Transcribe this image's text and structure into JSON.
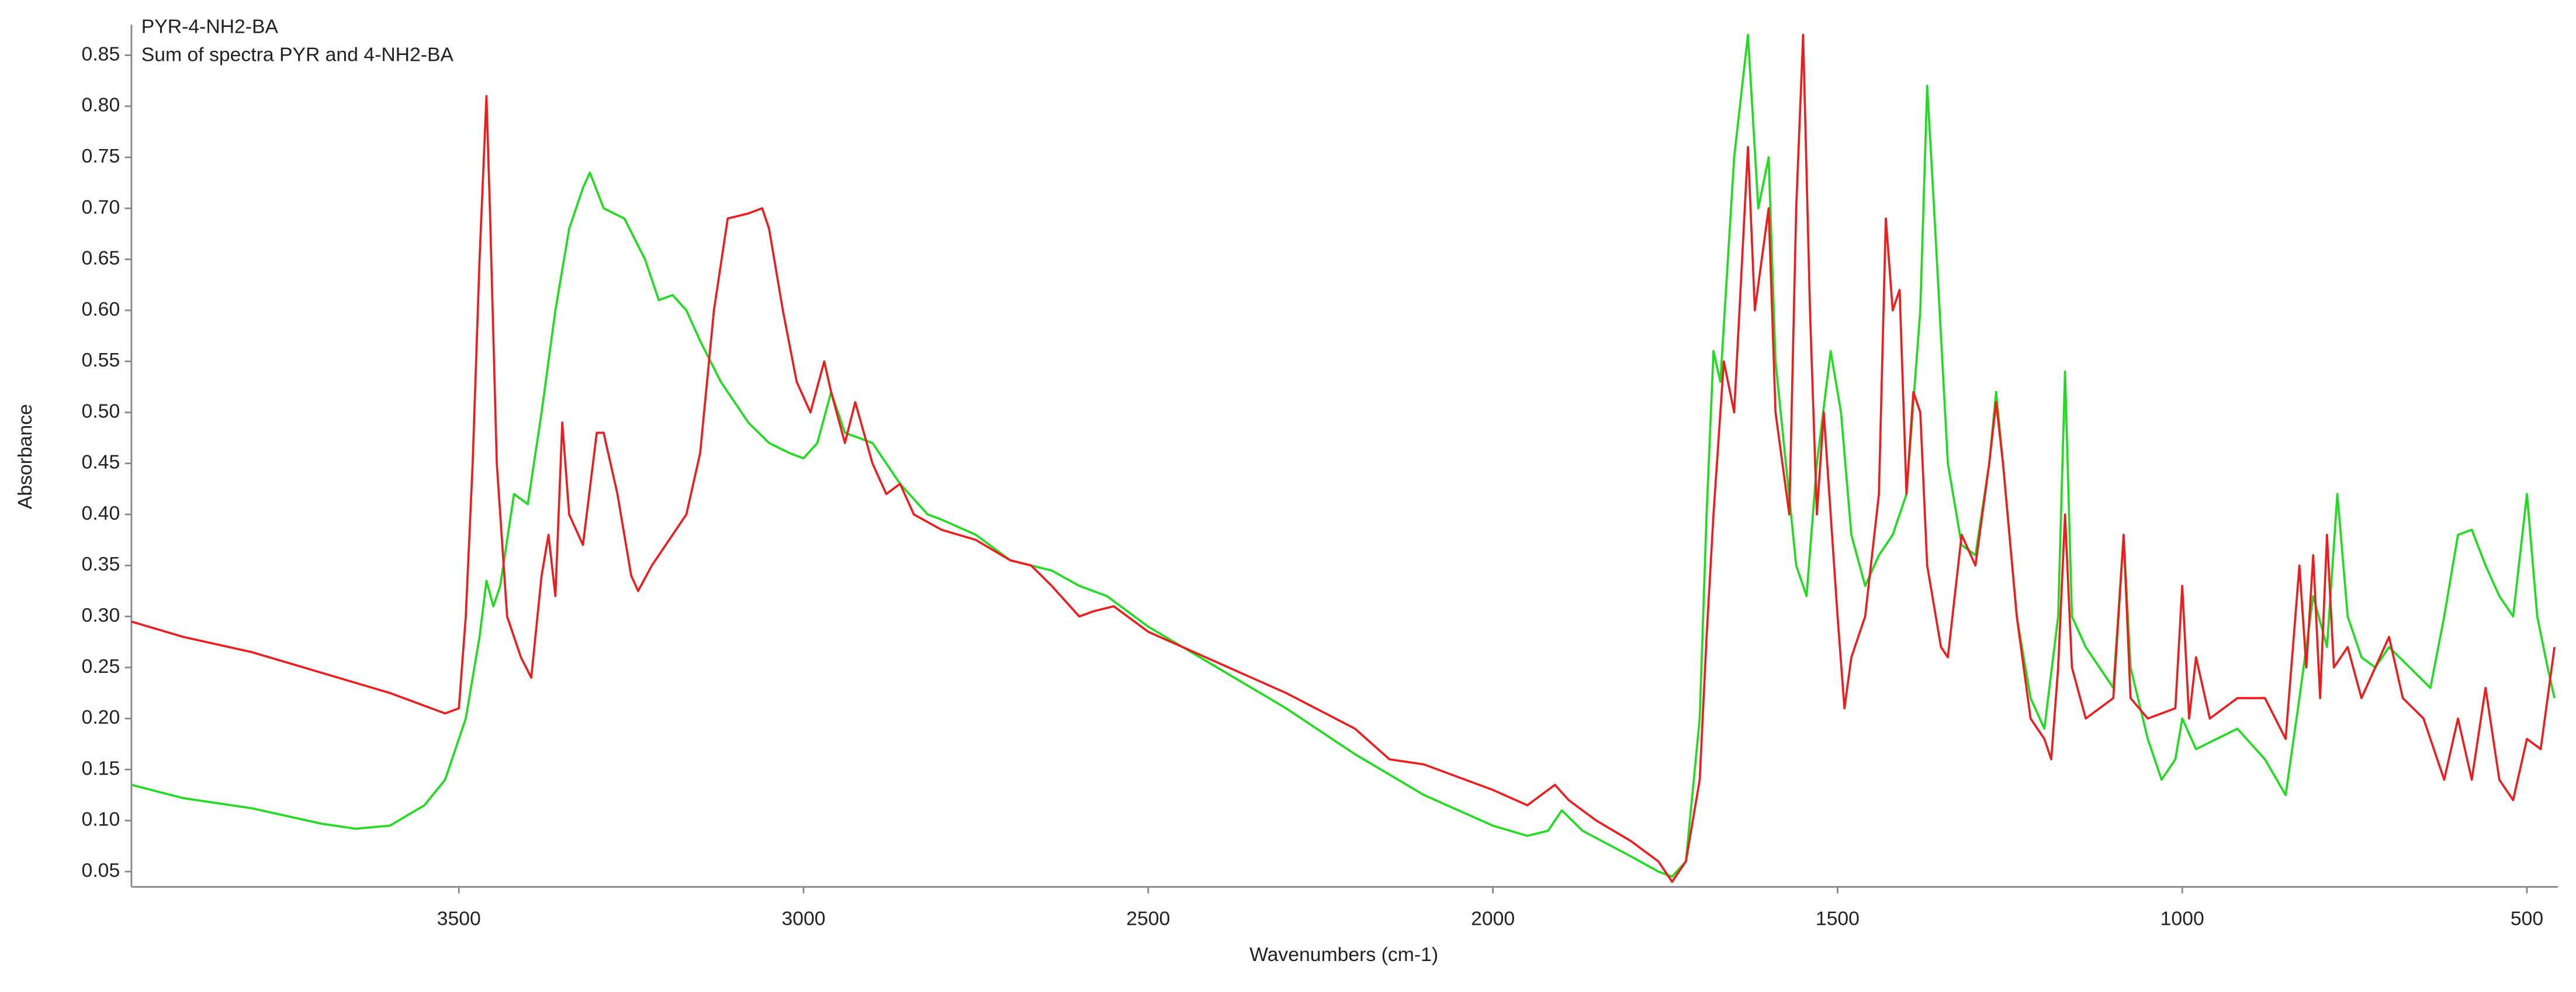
{
  "chart_data": {
    "type": "line",
    "xlabel": "Wavenumbers (cm-1)",
    "ylabel": "Absorbance",
    "xlim": [
      3975,
      455
    ],
    "ylim": [
      0.035,
      0.88
    ],
    "xticks": [
      3500,
      3000,
      2500,
      2000,
      1500,
      1000,
      500
    ],
    "yticks": [
      0.05,
      {
        "value": 0.1,
        "label": "0.10"
      },
      0.15,
      {
        "value": 0.2,
        "label": "0.20"
      },
      0.25,
      {
        "value": 0.3,
        "label": "0.30"
      },
      0.35,
      {
        "value": 0.4,
        "label": "0.40"
      },
      0.45,
      {
        "value": 0.5,
        "label": "0.50"
      },
      0.55,
      {
        "value": 0.6,
        "label": "0.60"
      },
      0.65,
      {
        "value": 0.7,
        "label": "0.70"
      },
      0.75,
      {
        "value": 0.8,
        "label": "0.80"
      },
      0.85
    ],
    "grid": false,
    "legend": "upper left",
    "series": [
      {
        "name": "PYR-4-NH2-BA",
        "color": "#1fdc1f",
        "x": [
          3975,
          3900,
          3800,
          3700,
          3650,
          3600,
          3550,
          3520,
          3490,
          3470,
          3460,
          3450,
          3440,
          3420,
          3400,
          3380,
          3360,
          3340,
          3320,
          3310,
          3290,
          3260,
          3230,
          3210,
          3190,
          3170,
          3150,
          3120,
          3080,
          3050,
          3020,
          3000,
          2980,
          2960,
          2940,
          2900,
          2860,
          2820,
          2800,
          2750,
          2700,
          2670,
          2640,
          2600,
          2560,
          2500,
          2400,
          2300,
          2200,
          2100,
          2000,
          1950,
          1920,
          1900,
          1870,
          1800,
          1760,
          1740,
          1720,
          1700,
          1690,
          1680,
          1670,
          1650,
          1630,
          1615,
          1600,
          1590,
          1575,
          1560,
          1545,
          1530,
          1510,
          1495,
          1480,
          1460,
          1440,
          1420,
          1400,
          1380,
          1370,
          1360,
          1340,
          1320,
          1300,
          1280,
          1270,
          1260,
          1240,
          1220,
          1200,
          1180,
          1170,
          1160,
          1140,
          1120,
          1100,
          1085,
          1075,
          1050,
          1030,
          1010,
          1000,
          980,
          950,
          920,
          880,
          850,
          830,
          810,
          790,
          775,
          760,
          740,
          720,
          700,
          670,
          640,
          620,
          600,
          580,
          560,
          540,
          520,
          500,
          485,
          470,
          460
        ],
        "values": [
          0.135,
          0.122,
          0.112,
          0.097,
          0.092,
          0.095,
          0.115,
          0.14,
          0.2,
          0.28,
          0.335,
          0.31,
          0.33,
          0.42,
          0.41,
          0.5,
          0.6,
          0.68,
          0.72,
          0.735,
          0.7,
          0.69,
          0.65,
          0.61,
          0.615,
          0.6,
          0.57,
          0.53,
          0.49,
          0.47,
          0.46,
          0.455,
          0.47,
          0.52,
          0.48,
          0.47,
          0.43,
          0.4,
          0.395,
          0.38,
          0.355,
          0.35,
          0.345,
          0.33,
          0.32,
          0.29,
          0.25,
          0.21,
          0.165,
          0.125,
          0.095,
          0.085,
          0.09,
          0.11,
          0.09,
          0.065,
          0.05,
          0.045,
          0.06,
          0.2,
          0.4,
          0.56,
          0.53,
          0.75,
          0.87,
          0.7,
          0.75,
          0.55,
          0.45,
          0.35,
          0.32,
          0.45,
          0.56,
          0.5,
          0.38,
          0.33,
          0.36,
          0.38,
          0.42,
          0.6,
          0.82,
          0.7,
          0.45,
          0.37,
          0.36,
          0.45,
          0.52,
          0.45,
          0.3,
          0.22,
          0.19,
          0.3,
          0.54,
          0.3,
          0.27,
          0.25,
          0.23,
          0.38,
          0.25,
          0.18,
          0.14,
          0.16,
          0.2,
          0.17,
          0.18,
          0.19,
          0.16,
          0.125,
          0.22,
          0.32,
          0.27,
          0.42,
          0.3,
          0.26,
          0.25,
          0.27,
          0.25,
          0.23,
          0.3,
          0.38,
          0.385,
          0.35,
          0.32,
          0.3,
          0.42,
          0.3,
          0.25,
          0.22
        ]
      },
      {
        "name": "Sum of spectra PYR and 4-NH2-BA",
        "color": "#ee1c1c",
        "x": [
          3975,
          3900,
          3800,
          3700,
          3600,
          3520,
          3500,
          3490,
          3480,
          3470,
          3460,
          3455,
          3445,
          3430,
          3410,
          3395,
          3380,
          3370,
          3360,
          3350,
          3340,
          3320,
          3300,
          3290,
          3270,
          3250,
          3240,
          3220,
          3200,
          3170,
          3150,
          3130,
          3110,
          3080,
          3060,
          3050,
          3030,
          3010,
          2990,
          2970,
          2960,
          2940,
          2925,
          2900,
          2880,
          2860,
          2840,
          2800,
          2750,
          2700,
          2670,
          2640,
          2600,
          2580,
          2550,
          2500,
          2400,
          2300,
          2200,
          2150,
          2100,
          2000,
          1950,
          1910,
          1890,
          1850,
          1800,
          1760,
          1740,
          1720,
          1700,
          1690,
          1680,
          1665,
          1650,
          1630,
          1620,
          1600,
          1590,
          1570,
          1560,
          1550,
          1540,
          1530,
          1520,
          1500,
          1490,
          1480,
          1460,
          1440,
          1430,
          1420,
          1410,
          1400,
          1390,
          1380,
          1370,
          1350,
          1340,
          1320,
          1300,
          1280,
          1270,
          1260,
          1240,
          1220,
          1200,
          1190,
          1180,
          1170,
          1160,
          1140,
          1100,
          1085,
          1075,
          1050,
          1010,
          1000,
          990,
          980,
          960,
          920,
          880,
          850,
          830,
          820,
          810,
          800,
          790,
          780,
          760,
          740,
          700,
          680,
          650,
          620,
          600,
          580,
          560,
          540,
          520,
          500,
          480,
          460
        ],
        "values": [
          0.295,
          0.28,
          0.265,
          0.245,
          0.225,
          0.205,
          0.21,
          0.3,
          0.45,
          0.65,
          0.81,
          0.7,
          0.45,
          0.3,
          0.26,
          0.24,
          0.34,
          0.38,
          0.32,
          0.49,
          0.4,
          0.37,
          0.48,
          0.48,
          0.42,
          0.34,
          0.325,
          0.35,
          0.37,
          0.4,
          0.46,
          0.6,
          0.69,
          0.695,
          0.7,
          0.68,
          0.6,
          0.53,
          0.5,
          0.55,
          0.52,
          0.47,
          0.51,
          0.45,
          0.42,
          0.43,
          0.4,
          0.385,
          0.375,
          0.355,
          0.35,
          0.33,
          0.3,
          0.305,
          0.31,
          0.285,
          0.255,
          0.225,
          0.19,
          0.16,
          0.155,
          0.13,
          0.115,
          0.135,
          0.12,
          0.1,
          0.08,
          0.06,
          0.04,
          0.06,
          0.14,
          0.28,
          0.4,
          0.55,
          0.5,
          0.76,
          0.6,
          0.7,
          0.5,
          0.4,
          0.7,
          0.87,
          0.6,
          0.4,
          0.5,
          0.3,
          0.21,
          0.26,
          0.3,
          0.42,
          0.69,
          0.6,
          0.62,
          0.42,
          0.52,
          0.5,
          0.35,
          0.27,
          0.26,
          0.38,
          0.35,
          0.45,
          0.51,
          0.45,
          0.3,
          0.2,
          0.18,
          0.16,
          0.25,
          0.4,
          0.25,
          0.2,
          0.22,
          0.38,
          0.22,
          0.2,
          0.21,
          0.33,
          0.2,
          0.26,
          0.2,
          0.22,
          0.22,
          0.18,
          0.35,
          0.25,
          0.36,
          0.22,
          0.38,
          0.25,
          0.27,
          0.22,
          0.28,
          0.22,
          0.2,
          0.14,
          0.2,
          0.14,
          0.23,
          0.14,
          0.12,
          0.18,
          0.17,
          0.27
        ]
      }
    ]
  }
}
